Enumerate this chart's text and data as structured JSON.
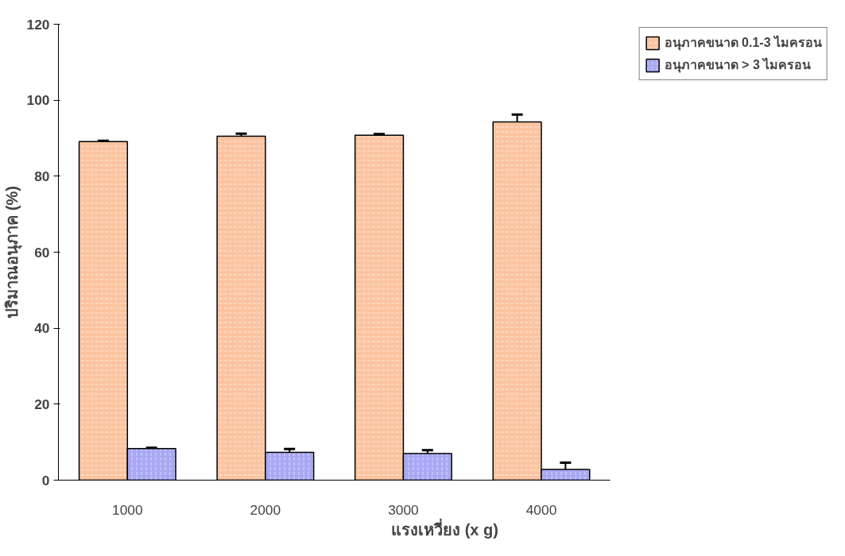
{
  "chart_data": {
    "type": "bar",
    "xlabel": "แรงเหวี่ยง (x g)",
    "ylabel": "ปริมาณอนุภาค (%)",
    "categories": [
      "1000",
      "2000",
      "3000",
      "4000"
    ],
    "series": [
      {
        "name": "อนุภาคขนาด 0.1-3 ไมครอน",
        "color": "#fbc4a0",
        "values": [
          89.1,
          90.5,
          90.8,
          94.3
        ],
        "errors": [
          0.2,
          0.7,
          0.3,
          1.9
        ]
      },
      {
        "name": "อนุภาคขนาด > 3 ไมครอน",
        "color": "#a8a8f5",
        "values": [
          8.3,
          7.3,
          7.0,
          2.8
        ],
        "errors": [
          0.2,
          0.9,
          0.9,
          1.8
        ]
      }
    ],
    "ylim": [
      0,
      120
    ],
    "yticks": [
      0,
      20,
      40,
      60,
      80,
      100,
      120
    ],
    "grid": false,
    "legend": "top right"
  }
}
